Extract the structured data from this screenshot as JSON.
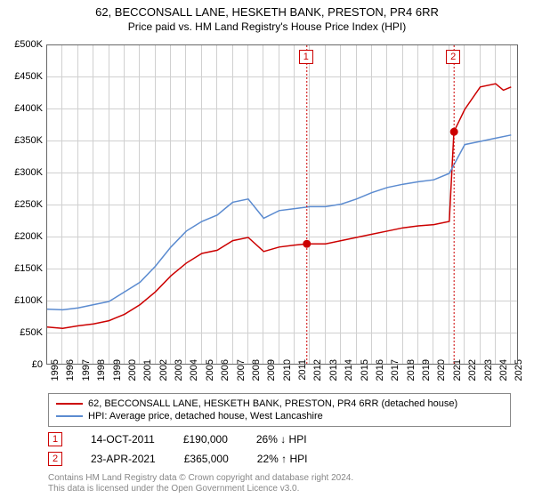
{
  "title": "62, BECCONSALL LANE, HESKETH BANK, PRESTON, PR4 6RR",
  "subtitle": "Price paid vs. HM Land Registry's House Price Index (HPI)",
  "chart": {
    "type": "line",
    "background_color": "#ffffff",
    "grid_color": "#d0d0d0",
    "border_color": "#666666",
    "title_fontsize": 13,
    "label_fontsize": 11,
    "xlim": [
      1995,
      2025.5
    ],
    "ylim": [
      0,
      500000
    ],
    "ytick_step": 50000,
    "ytick_labels": [
      "£0",
      "£50K",
      "£100K",
      "£150K",
      "£200K",
      "£250K",
      "£300K",
      "£350K",
      "£400K",
      "£450K",
      "£500K"
    ],
    "xtick_step": 1,
    "xtick_labels": [
      "1995",
      "1996",
      "1997",
      "1998",
      "1999",
      "2000",
      "2001",
      "2002",
      "2003",
      "2004",
      "2005",
      "2006",
      "2007",
      "2008",
      "2009",
      "2010",
      "2011",
      "2012",
      "2013",
      "2014",
      "2015",
      "2016",
      "2017",
      "2018",
      "2019",
      "2020",
      "2021",
      "2022",
      "2023",
      "2024",
      "2025"
    ],
    "series": [
      {
        "name": "property",
        "label": "62, BECCONSALL LANE, HESKETH BANK, PRESTON, PR4 6RR (detached house)",
        "color": "#cc0000",
        "line_width": 1.5,
        "x": [
          1995,
          1996,
          1997,
          1998,
          1999,
          2000,
          2001,
          2002,
          2003,
          2004,
          2005,
          2006,
          2007,
          2008,
          2009,
          2010,
          2011,
          2011.8,
          2012,
          2013,
          2014,
          2015,
          2016,
          2017,
          2018,
          2019,
          2020,
          2021,
          2021.3,
          2022,
          2023,
          2024,
          2024.5,
          2025
        ],
        "y": [
          60000,
          58000,
          62000,
          65000,
          70000,
          80000,
          95000,
          115000,
          140000,
          160000,
          175000,
          180000,
          195000,
          200000,
          178000,
          185000,
          188000,
          190000,
          190000,
          190000,
          195000,
          200000,
          205000,
          210000,
          215000,
          218000,
          220000,
          225000,
          365000,
          400000,
          435000,
          440000,
          430000,
          435000
        ]
      },
      {
        "name": "hpi",
        "label": "HPI: Average price, detached house, West Lancashire",
        "color": "#5b8bd0",
        "line_width": 1.5,
        "x": [
          1995,
          1996,
          1997,
          1998,
          1999,
          2000,
          2001,
          2002,
          2003,
          2004,
          2005,
          2006,
          2007,
          2008,
          2009,
          2010,
          2011,
          2012,
          2013,
          2014,
          2015,
          2016,
          2017,
          2018,
          2019,
          2020,
          2021,
          2022,
          2023,
          2024,
          2025
        ],
        "y": [
          88000,
          87000,
          90000,
          95000,
          100000,
          115000,
          130000,
          155000,
          185000,
          210000,
          225000,
          235000,
          255000,
          260000,
          230000,
          242000,
          245000,
          248000,
          248000,
          252000,
          260000,
          270000,
          278000,
          283000,
          287000,
          290000,
          300000,
          345000,
          350000,
          355000,
          360000
        ]
      }
    ],
    "events": [
      {
        "x": 2011.79,
        "label": "1",
        "color": "#cc0000"
      },
      {
        "x": 2021.31,
        "label": "2",
        "color": "#cc0000"
      }
    ],
    "sale_points": [
      {
        "x": 2011.79,
        "y": 190000
      },
      {
        "x": 2021.31,
        "y": 365000
      }
    ]
  },
  "legend": {
    "items": [
      {
        "color": "#cc0000",
        "label": "62, BECCONSALL LANE, HESKETH BANK, PRESTON, PR4 6RR (detached house)"
      },
      {
        "color": "#5b8bd0",
        "label": "HPI: Average price, detached house, West Lancashire"
      }
    ]
  },
  "sales": [
    {
      "marker": "1",
      "marker_color": "#cc0000",
      "date": "14-OCT-2011",
      "price": "£190,000",
      "delta": "26% ↓ HPI"
    },
    {
      "marker": "2",
      "marker_color": "#cc0000",
      "date": "23-APR-2021",
      "price": "£365,000",
      "delta": "22% ↑ HPI"
    }
  ],
  "footer_line1": "Contains HM Land Registry data © Crown copyright and database right 2024.",
  "footer_line2": "This data is licensed under the Open Government Licence v3.0."
}
